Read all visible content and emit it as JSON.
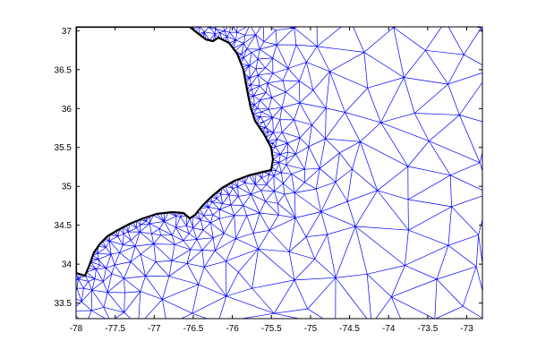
{
  "figure": {
    "background": "#ffffff",
    "axes_color": "#000000"
  },
  "map": {
    "mesh_color": "#0000ff",
    "coast_color": "#000000",
    "land_color": "#ffffff",
    "lon_range": [
      -78,
      -72.8
    ],
    "lat_range": [
      33.3,
      37.05
    ]
  },
  "axes": {
    "xticks": [
      "-78",
      "-77.5",
      "-77",
      "-76.5",
      "-76",
      "-75.5",
      "-75",
      "-74.5",
      "-74",
      "-73.5",
      "-73"
    ],
    "yticks": [
      "37",
      "36.5",
      "36",
      "35.5",
      "35",
      "34.5",
      "34",
      "33.5"
    ]
  }
}
